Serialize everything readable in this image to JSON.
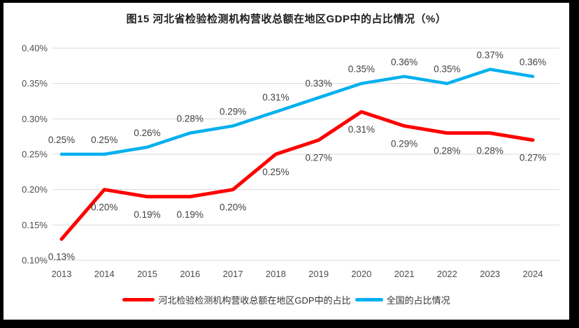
{
  "title": "图15 河北省检验检测机构营收总额在地区GDP中的占比情况（%）",
  "chart_data": {
    "type": "line",
    "title": "图15 河北省检验检测机构营收总额在地区GDP中的占比情况（%）",
    "categories": [
      "2013",
      "2014",
      "2015",
      "2016",
      "2017",
      "2018",
      "2019",
      "2020",
      "2021",
      "2022",
      "2023",
      "2024"
    ],
    "series": [
      {
        "name": "河北检验检测机构营收总额在地区GDP中的占比",
        "color": "#FF0000",
        "stroke_width": 5,
        "label_position": "below",
        "values": [
          0.13,
          0.2,
          0.19,
          0.19,
          0.2,
          0.25,
          0.27,
          0.31,
          0.29,
          0.28,
          0.28,
          0.27
        ],
        "labels": [
          "0.13%",
          "0.20%",
          "0.19%",
          "0.19%",
          "0.20%",
          "0.25%",
          "0.27%",
          "0.31%",
          "0.29%",
          "0.28%",
          "0.28%",
          "0.27%"
        ]
      },
      {
        "name": "全国的占比情况",
        "color": "#00B0F0",
        "stroke_width": 4.5,
        "label_position": "above",
        "values": [
          0.25,
          0.25,
          0.26,
          0.28,
          0.29,
          0.31,
          0.33,
          0.35,
          0.36,
          0.35,
          0.37,
          0.36
        ],
        "labels": [
          "0.25%",
          "0.25%",
          "0.26%",
          "0.28%",
          "0.29%",
          "0.31%",
          "0.33%",
          "0.35%",
          "0.36%",
          "0.35%",
          "0.37%",
          "0.36%"
        ]
      }
    ],
    "xlabel": "",
    "ylabel": "",
    "ylim": [
      0.1,
      0.4
    ],
    "y_step": 0.05,
    "y_ticks": [
      "0.10%",
      "0.15%",
      "0.20%",
      "0.25%",
      "0.30%",
      "0.35%",
      "0.40%"
    ],
    "grid": true,
    "legend_position": "bottom",
    "colors": {
      "background": "#FFFFFF",
      "frame": "#000000",
      "gridline": "#D9D9D9",
      "axis_label": "#4D4D4D",
      "data_label": "#404040",
      "title": "#1F1F1F"
    }
  }
}
